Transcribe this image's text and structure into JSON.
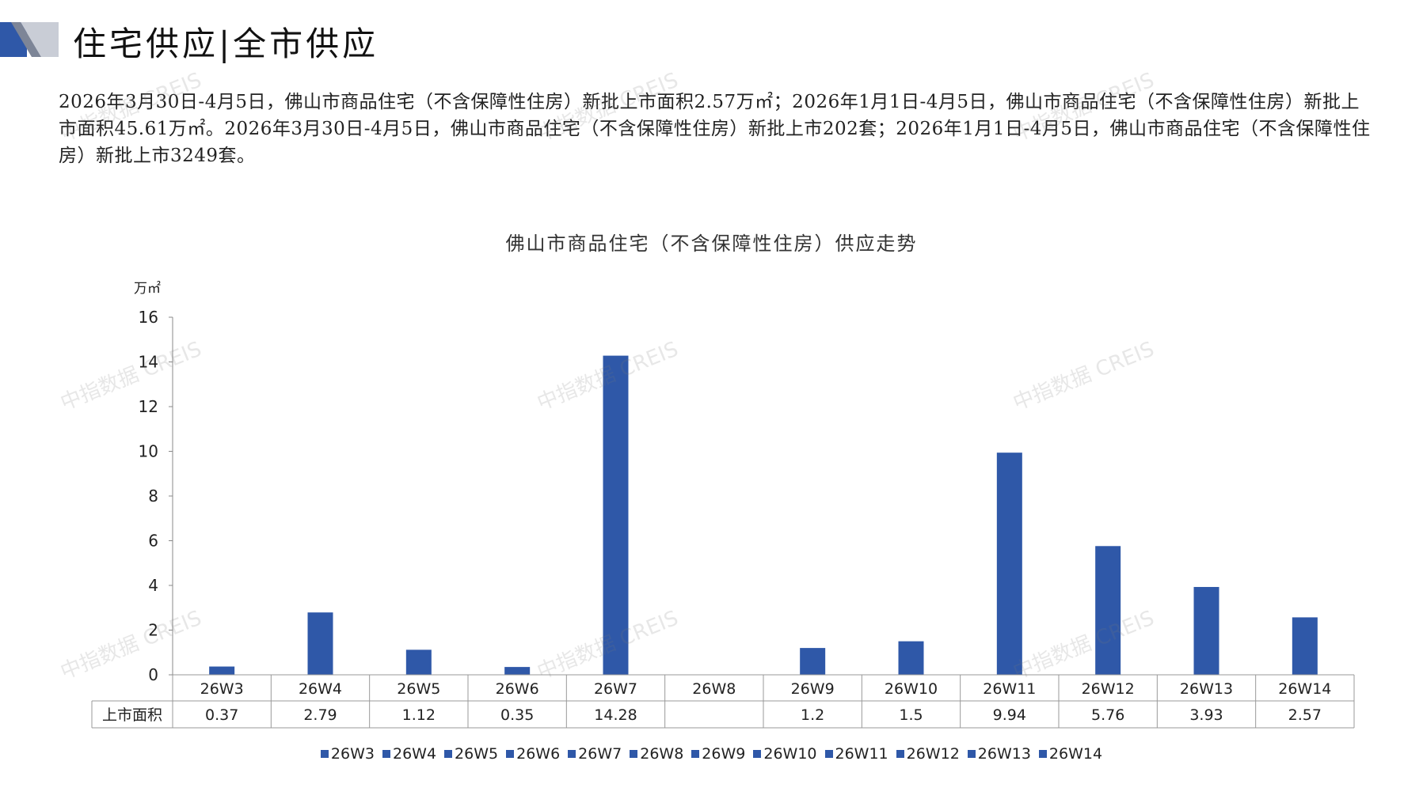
{
  "header": {
    "title": "住宅供应|全市供应"
  },
  "summary": "2026年3月30日-4月5日，佛山市商品住宅（不含保障性住房）新批上市面积2.57万㎡；2026年1月1日-4月5日，佛山市商品住宅（不含保障性住房）新批上市面积45.61万㎡。2026年3月30日-4月5日，佛山市商品住宅（不含保障性住房）新批上市202套；2026年1月1日-4月5日，佛山市商品住宅（不含保障性住房）新批上市3249套。",
  "watermark": "中指数据 CREIS",
  "chart_data": {
    "type": "bar",
    "title": "佛山市商品住宅（不含保障性住房）供应走势",
    "ylabel": "万㎡",
    "ylim": [
      0,
      16
    ],
    "yticks": [
      "0",
      "2",
      "4",
      "6",
      "8",
      "10",
      "12",
      "14",
      "16"
    ],
    "categories": [
      "26W3",
      "26W4",
      "26W5",
      "26W6",
      "26W7",
      "26W8",
      "26W9",
      "26W10",
      "26W11",
      "26W12",
      "26W13",
      "26W14"
    ],
    "table_row_label": "上市面积",
    "values": [
      0.37,
      2.79,
      1.12,
      0.35,
      14.28,
      null,
      1.2,
      1.5,
      9.94,
      5.76,
      3.93,
      2.57
    ],
    "value_labels": [
      "0.37",
      "2.79",
      "1.12",
      "0.35",
      "14.28",
      "",
      "1.2",
      "1.5",
      "9.94",
      "5.76",
      "3.93",
      "2.57"
    ],
    "bar_color": "#2f58a8",
    "grid": false,
    "legend_position": "bottom"
  }
}
